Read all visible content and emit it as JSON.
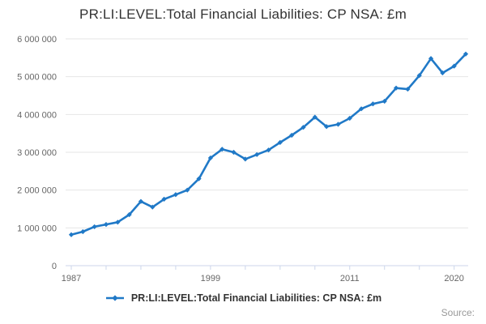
{
  "chart": {
    "title": "PR:LI:LEVEL:Total Financial Liabilities: CP NSA: £m"
  },
  "chart_data": {
    "type": "line",
    "title": "PR:LI:LEVEL:Total Financial Liabilities: CP NSA: £m",
    "xlabel": "",
    "ylabel": "",
    "ylim": [
      0,
      6000000
    ],
    "grid": "horizontal",
    "legend_position": "bottom-center",
    "x": [
      1987,
      1988,
      1989,
      1990,
      1991,
      1992,
      1993,
      1994,
      1995,
      1996,
      1997,
      1998,
      1999,
      2000,
      2001,
      2002,
      2003,
      2004,
      2005,
      2006,
      2007,
      2008,
      2009,
      2010,
      2011,
      2012,
      2013,
      2014,
      2015,
      2016,
      2017,
      2018,
      2019,
      2020,
      2021
    ],
    "series": [
      {
        "name": "PR:LI:LEVEL:Total Financial Liabilities: CP NSA: £m",
        "color": "#2079c7",
        "values": [
          820000,
          900000,
          1030000,
          1090000,
          1150000,
          1350000,
          1700000,
          1550000,
          1760000,
          1880000,
          2000000,
          2300000,
          2850000,
          3080000,
          3000000,
          2820000,
          2940000,
          3060000,
          3260000,
          3450000,
          3660000,
          3930000,
          3680000,
          3740000,
          3900000,
          4150000,
          4280000,
          4350000,
          4700000,
          4670000,
          5030000,
          5480000,
          5100000,
          5280000,
          5600000
        ]
      }
    ],
    "y_tick_labels": [
      "0",
      "1 000 000",
      "2 000 000",
      "3 000 000",
      "4 000 000",
      "5 000 000",
      "6 000 000"
    ],
    "x_ticks": [
      1987,
      1990,
      1993,
      1996,
      1999,
      2002,
      2005,
      2008,
      2011,
      2014,
      2017,
      2020
    ],
    "x_tick_labels": [
      {
        "year": 1987,
        "label": "1987"
      },
      {
        "year": 1999,
        "label": "1999"
      },
      {
        "year": 2011,
        "label": "2011"
      },
      {
        "year": 2020,
        "label": "2020"
      }
    ]
  },
  "footer": {
    "source_label": "Source:"
  },
  "colors": {
    "line": "#2079c7",
    "grid": "#e6e6e6",
    "axis": "#ccd6eb",
    "tick_text": "#666666",
    "title_text": "#333333",
    "legend_text": "#333333",
    "source_text": "#999999"
  }
}
